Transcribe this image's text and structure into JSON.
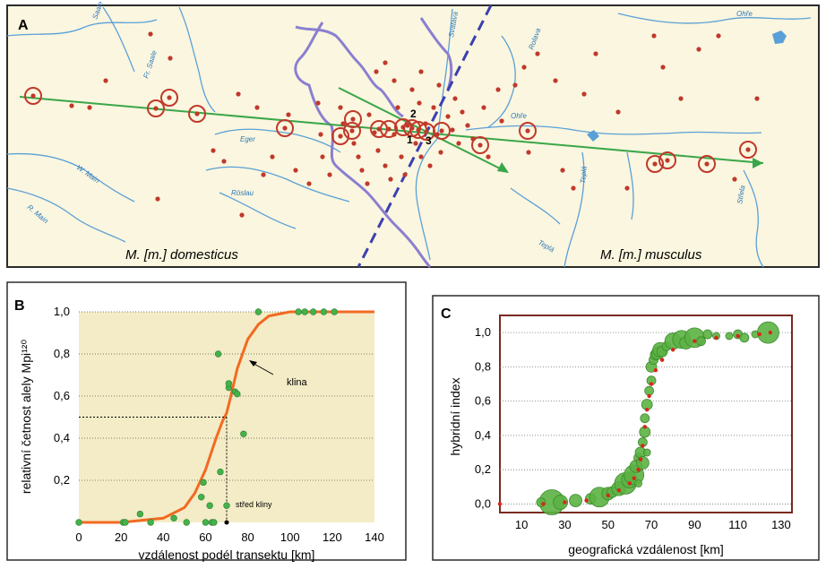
{
  "panel_a": {
    "label": "A",
    "legend_left": "M. [m.] domesticus",
    "legend_right": "M. [m.] musculus",
    "sites": [
      "1",
      "2",
      "3"
    ],
    "rivers": [
      "Saale",
      "Fr. Saale",
      "Eger",
      "W. Main",
      "R. Main",
      "Röslau",
      "Svatava",
      "Ohře",
      "Ohře",
      "Rolava",
      "Teplá",
      "Teplá",
      "Střela"
    ],
    "colors": {
      "map_bg": "#fbf6df",
      "frame": "#2b2b2b",
      "river": "#5aa0d8",
      "border": "#8a7fd0",
      "hybrid_line": "#3a40b0",
      "transect": "#3aa64a",
      "site": "#c0392b"
    }
  },
  "panel_b": {
    "label": "B",
    "annotation_cline": "klina",
    "annotation_center": "střed kliny",
    "colors": {
      "bg": "#f3ecc6",
      "curve": "#f26a21",
      "point": "#44b24a"
    }
  },
  "panel_c": {
    "label": "C",
    "colors": {
      "bubble": "#5cb244",
      "bubble_edge": "#3c8a2c",
      "fit": "#d8261c",
      "frame": "#7a2a20"
    }
  },
  "chart_data": [
    {
      "type": "scatter",
      "panel": "B",
      "xlabel": "vzdálenost podél transektu [km]",
      "ylabel": "relativní četnost alely Mpi¹²⁰",
      "xlim": [
        0,
        140
      ],
      "ylim": [
        0,
        1.0
      ],
      "xticks": [
        0,
        20,
        40,
        60,
        80,
        100,
        120,
        140
      ],
      "yticks": [
        0.2,
        0.4,
        0.6,
        0.8,
        1.0
      ],
      "ytick_labels": [
        "0,2",
        "0,4",
        "0,6",
        "0,8",
        "1,0"
      ],
      "grid": "horizontal dotted",
      "series": [
        {
          "kind": "points",
          "x": [
            0,
            21,
            22,
            29,
            34,
            45,
            51,
            58,
            59,
            60,
            62,
            63,
            64,
            66,
            67,
            70,
            71,
            71,
            74,
            75,
            78,
            85,
            104,
            107,
            111,
            116,
            121
          ],
          "y": [
            0,
            0,
            0,
            0.04,
            0,
            0.02,
            0,
            0.12,
            0.19,
            0,
            0.08,
            0,
            0,
            0.8,
            0.24,
            0.08,
            0.64,
            0.66,
            0.62,
            0.61,
            0.42,
            1.0,
            1.0,
            1.0,
            1.0,
            1.0,
            1.0
          ]
        },
        {
          "kind": "curve",
          "center_x": 70,
          "x": [
            0,
            10,
            20,
            30,
            40,
            50,
            55,
            60,
            65,
            68,
            70,
            72,
            75,
            80,
            85,
            90,
            100,
            110,
            120,
            140
          ],
          "y": [
            0,
            0,
            0,
            0.01,
            0.02,
            0.07,
            0.14,
            0.25,
            0.4,
            0.48,
            0.52,
            0.6,
            0.73,
            0.87,
            0.94,
            0.98,
            1.0,
            1.0,
            1.0,
            1.0
          ]
        }
      ]
    },
    {
      "type": "scatter",
      "panel": "C",
      "xlabel": "geografická vzdálenost [km]",
      "ylabel": "hybridní index",
      "xlim": [
        0,
        135
      ],
      "ylim": [
        -0.05,
        1.1
      ],
      "xticks": [
        10,
        30,
        50,
        70,
        90,
        110,
        130
      ],
      "yticks": [
        0,
        0.2,
        0.4,
        0.6,
        0.8,
        1.0
      ],
      "ytick_labels": [
        "0,0",
        "0,2",
        "0,4",
        "0,6",
        "0,8",
        "1,0"
      ],
      "grid": "horizontal dotted",
      "series": [
        {
          "kind": "bubbles",
          "x": [
            24,
            19,
            28,
            35,
            42,
            46,
            50,
            52,
            55,
            58,
            60,
            62,
            63,
            64,
            64,
            65,
            66,
            66,
            67,
            67,
            68,
            68,
            69,
            70,
            70,
            71,
            72,
            73,
            74,
            75,
            77,
            80,
            84,
            86,
            90,
            93,
            96,
            100,
            106,
            110,
            113,
            118,
            124
          ],
          "y": [
            0.01,
            0.01,
            0.01,
            0.02,
            0.03,
            0.04,
            0.06,
            0.07,
            0.09,
            0.12,
            0.14,
            0.17,
            0.22,
            0.27,
            0.12,
            0.3,
            0.36,
            0.24,
            0.42,
            0.5,
            0.58,
            0.3,
            0.66,
            0.72,
            0.8,
            0.84,
            0.87,
            0.88,
            0.9,
            0.89,
            0.92,
            0.95,
            0.96,
            0.94,
            0.97,
            0.95,
            0.99,
            0.98,
            0.98,
            0.99,
            0.97,
            0.99,
            1.0
          ],
          "size": [
            14,
            5,
            8,
            7,
            6,
            11,
            7,
            6,
            8,
            12,
            9,
            11,
            7,
            5,
            4,
            6,
            5,
            7,
            6,
            5,
            6,
            4,
            5,
            5,
            6,
            5,
            6,
            7,
            8,
            6,
            5,
            9,
            10,
            7,
            11,
            5,
            5,
            4,
            4,
            5,
            5,
            4,
            12
          ]
        },
        {
          "kind": "fit",
          "x": [
            0,
            20,
            30,
            40,
            50,
            55,
            60,
            62,
            64,
            65,
            66,
            67,
            68,
            69,
            70,
            72,
            75,
            80,
            90,
            100,
            110,
            120,
            125
          ],
          "y": [
            0,
            0,
            0.01,
            0.02,
            0.05,
            0.08,
            0.12,
            0.15,
            0.2,
            0.26,
            0.34,
            0.45,
            0.55,
            0.63,
            0.7,
            0.78,
            0.84,
            0.9,
            0.95,
            0.97,
            0.98,
            0.99,
            1.0
          ]
        }
      ]
    }
  ]
}
